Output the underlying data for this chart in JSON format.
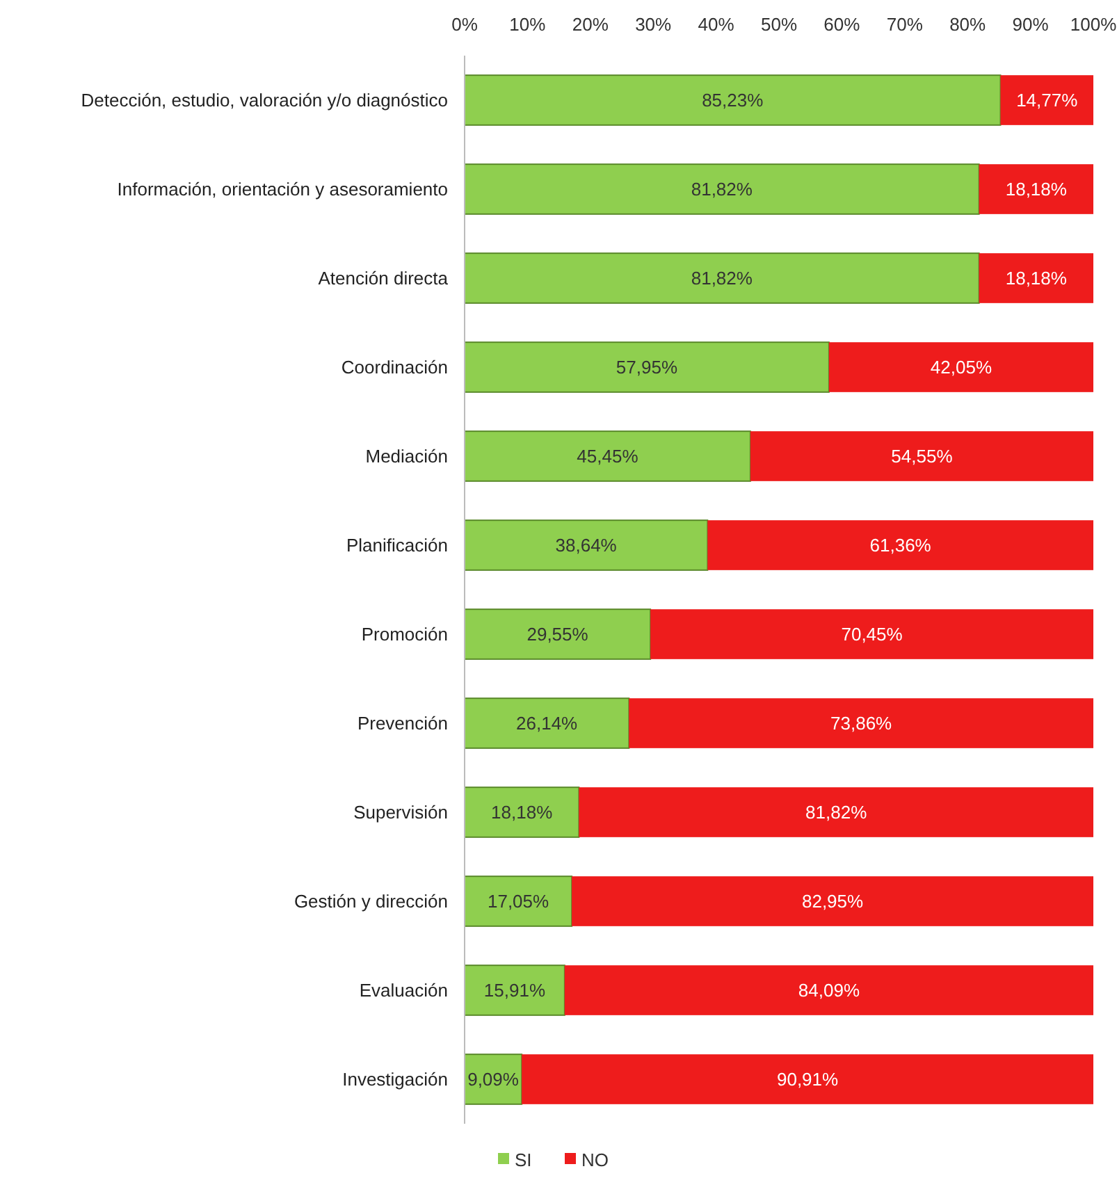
{
  "chart_data": {
    "type": "bar",
    "orientation": "horizontal",
    "stacked": true,
    "categories": [
      "Detección, estudio, valoración y/o diagnóstico",
      "Información, orientación y asesoramiento",
      "Atención directa",
      "Coordinación",
      "Mediación",
      "Planificación",
      "Promoción",
      "Prevención",
      "Supervisión",
      "Gestión y dirección",
      "Evaluación",
      "Investigación"
    ],
    "series": [
      {
        "name": "SI",
        "color": "#8fcf4f",
        "values": [
          85.23,
          81.82,
          81.82,
          57.95,
          45.45,
          38.64,
          29.55,
          26.14,
          18.18,
          17.05,
          15.91,
          9.09
        ],
        "value_labels": [
          "85,23%",
          "81,82%",
          "81,82%",
          "57,95%",
          "45,45%",
          "38,64%",
          "29,55%",
          "26,14%",
          "18,18%",
          "17,05%",
          "15,91%",
          "9,09%"
        ]
      },
      {
        "name": "NO",
        "color": "#ee1c1c",
        "values": [
          14.77,
          18.18,
          18.18,
          42.05,
          54.55,
          61.36,
          70.45,
          73.86,
          81.82,
          82.95,
          84.09,
          90.91
        ],
        "value_labels": [
          "14,77%",
          "18,18%",
          "18,18%",
          "42,05%",
          "54,55%",
          "61,36%",
          "70,45%",
          "73,86%",
          "81,82%",
          "82,95%",
          "84,09%",
          "90,91%"
        ]
      }
    ],
    "xlim": [
      0,
      100
    ],
    "xticks": [
      {
        "value": 0,
        "label": "0%"
      },
      {
        "value": 10,
        "label": "10%"
      },
      {
        "value": 20,
        "label": "20%"
      },
      {
        "value": 30,
        "label": "30%"
      },
      {
        "value": 40,
        "label": "40%"
      },
      {
        "value": 50,
        "label": "50%"
      },
      {
        "value": 60,
        "label": "60%"
      },
      {
        "value": 70,
        "label": "70%"
      },
      {
        "value": 80,
        "label": "80%"
      },
      {
        "value": 90,
        "label": "90%"
      },
      {
        "value": 100,
        "label": "100%"
      }
    ],
    "legend": "bottom",
    "grid": false
  }
}
